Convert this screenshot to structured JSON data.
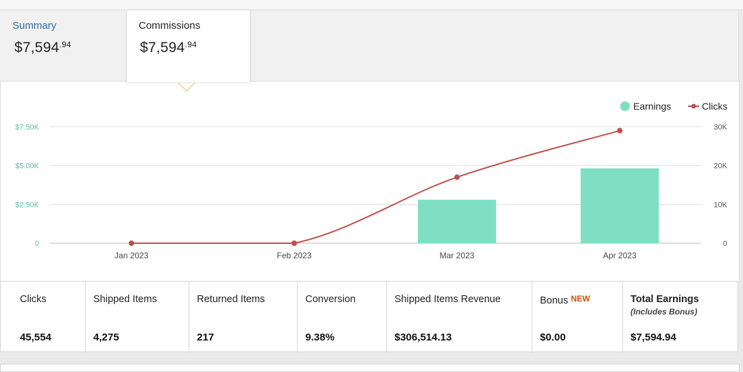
{
  "tabs": [
    {
      "label": "Summary",
      "amount_main": "$7,594",
      "amount_cents": ".94"
    },
    {
      "label": "Commissions",
      "amount_main": "$7,594",
      "amount_cents": ".94"
    }
  ],
  "chart_data": {
    "type": "bar+line",
    "categories": [
      "Jan 2023",
      "Feb 2023",
      "Mar 2023",
      "Apr 2023"
    ],
    "series": [
      {
        "name": "Earnings",
        "type": "bar",
        "axis": "left",
        "color": "#7edfc3",
        "values": [
          0,
          0,
          2800,
          4820
        ]
      },
      {
        "name": "Clicks",
        "type": "line",
        "axis": "right",
        "color": "#c0504d",
        "values": [
          0,
          0,
          17000,
          29000
        ]
      }
    ],
    "left_axis": {
      "ticks": [
        "0",
        "$2.50K",
        "$5.00K",
        "$7.50K"
      ],
      "range": [
        0,
        7500
      ]
    },
    "right_axis": {
      "ticks": [
        "0",
        "10K",
        "20K",
        "30K"
      ],
      "range": [
        0,
        30000
      ]
    },
    "legend": [
      "Earnings",
      "Clicks"
    ],
    "legend_position": "top-right",
    "grid": true
  },
  "stats": [
    {
      "label": "Clicks",
      "value": "45,554"
    },
    {
      "label": "Shipped Items",
      "value": "4,275"
    },
    {
      "label": "Returned Items",
      "value": "217"
    },
    {
      "label": "Conversion",
      "value": "9.38%"
    },
    {
      "label": "Shipped Items Revenue",
      "value": "$306,514.13"
    },
    {
      "label": "Bonus",
      "badge": "NEW",
      "value": "$0.00"
    },
    {
      "label": "Total Earnings",
      "sublabel": "(Includes Bonus)",
      "value": "$7,594.94"
    }
  ],
  "colors": {
    "summary_tab": "#2e6ea3",
    "earnings_bar": "#7edfc3",
    "clicks_line": "#c0504d",
    "left_axis_text": "#5fb9a3",
    "new_badge": "#c45500"
  }
}
